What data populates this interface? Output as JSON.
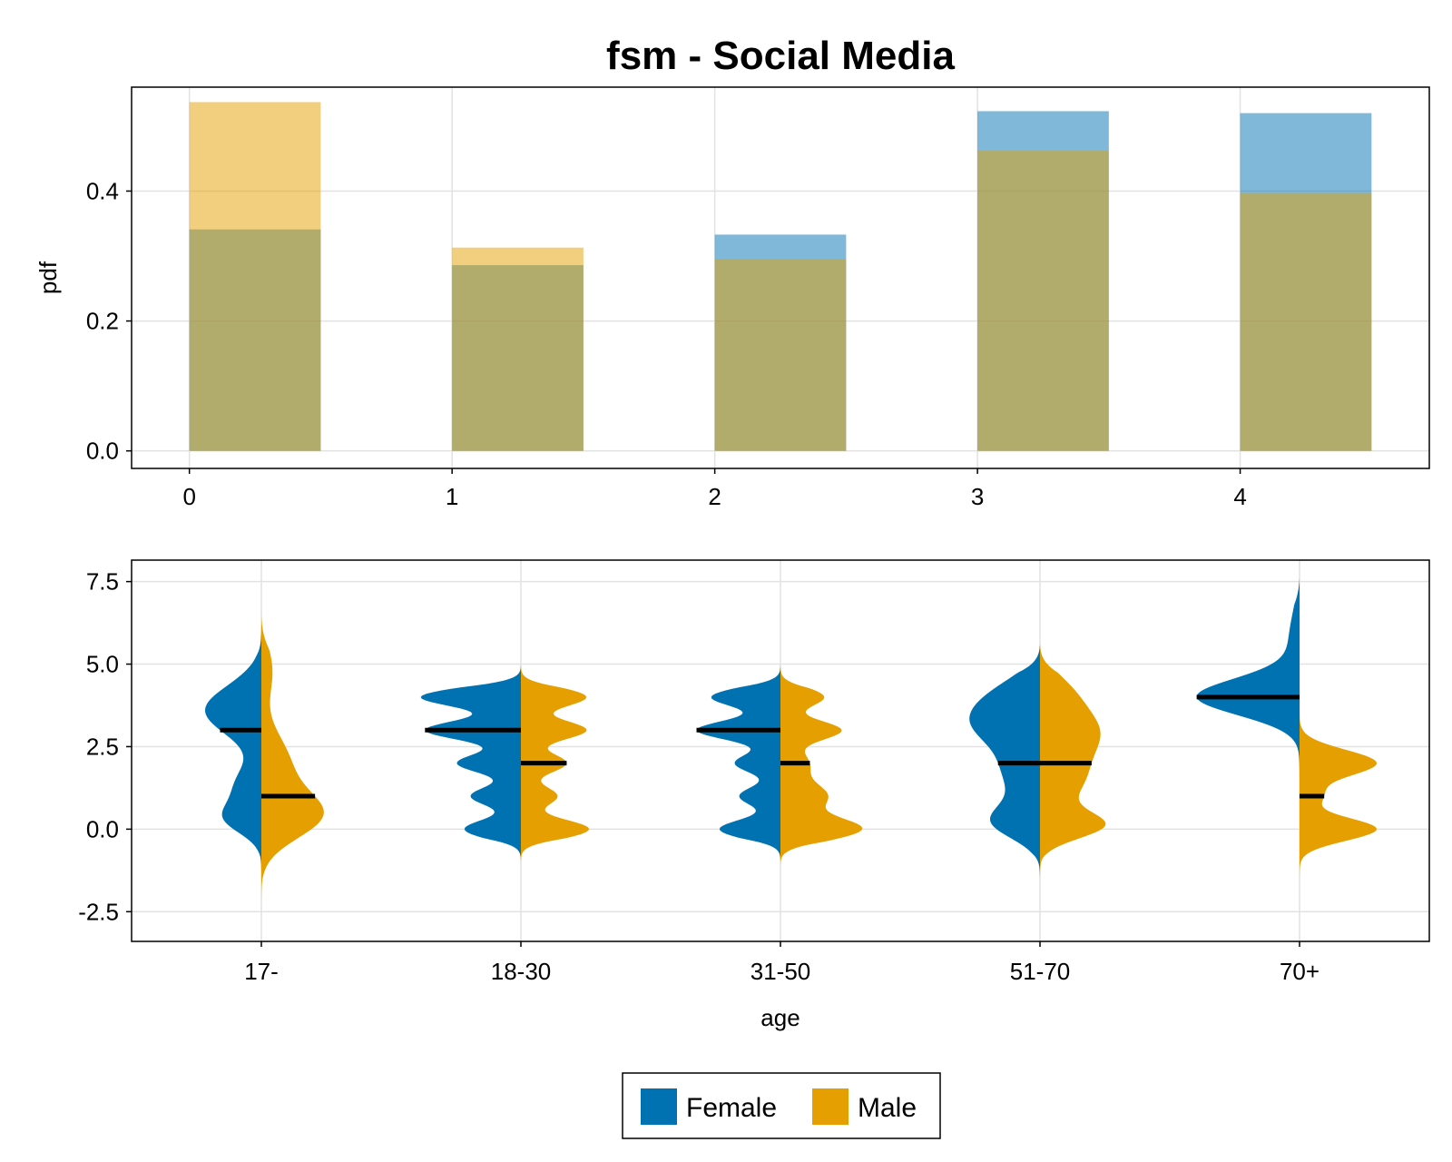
{
  "chart_data": [
    {
      "type": "bar",
      "title": "fsm - Social Media",
      "xlabel": "",
      "ylabel": "pdf",
      "xlim": [
        -0.22,
        4.72
      ],
      "ylim": [
        -0.027,
        0.56
      ],
      "xticks": [
        "0",
        "1",
        "2",
        "3",
        "4"
      ],
      "yticks": [
        "0.0",
        "0.2",
        "0.4"
      ],
      "grid": true,
      "bar_width": 0.5,
      "categories": [
        0,
        1,
        2,
        3,
        4
      ],
      "series": [
        {
          "name": "Female",
          "color": "#0072b2",
          "opacity": 0.5,
          "values": [
            0.341,
            0.286,
            0.333,
            0.523,
            0.52
          ]
        },
        {
          "name": "Male",
          "color": "#e69f00",
          "opacity": 0.5,
          "values": [
            0.537,
            0.313,
            0.295,
            0.462,
            0.397
          ]
        }
      ]
    },
    {
      "type": "violin",
      "xlabel": "age",
      "ylabel": "",
      "ylim": [
        -3.4,
        8.15
      ],
      "yticks": [
        "-2.5",
        "0.0",
        "2.5",
        "5.0",
        "7.5"
      ],
      "grid": true,
      "categories": [
        "17-",
        "18-30",
        "31-50",
        "51-70",
        "70+"
      ],
      "series": [
        {
          "name": "Female",
          "color": "#0072b2",
          "side": "left",
          "medians": [
            3,
            3,
            3,
            2,
            4
          ]
        },
        {
          "name": "Male",
          "color": "#e69f00",
          "side": "right",
          "medians": [
            1,
            2,
            2,
            2,
            1
          ]
        }
      ]
    }
  ],
  "legend": {
    "placement": "bottom",
    "items": [
      {
        "label": "Female",
        "color": "#0072b2"
      },
      {
        "label": "Male",
        "color": "#e69f00"
      }
    ]
  }
}
